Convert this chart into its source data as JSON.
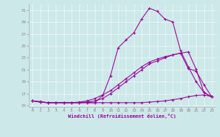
{
  "background_color": "#cce8e8",
  "line_color": "#990099",
  "xlim": [
    -0.5,
    23.5
  ],
  "ylim": [
    14.8,
    32.0
  ],
  "yticks": [
    15,
    17,
    19,
    21,
    23,
    25,
    27,
    29,
    31
  ],
  "xticks": [
    0,
    1,
    2,
    3,
    4,
    5,
    6,
    7,
    8,
    9,
    10,
    11,
    12,
    13,
    14,
    15,
    16,
    17,
    18,
    19,
    20,
    21,
    22,
    23
  ],
  "xlabel": "Windchill (Refroidissement éolien,°C)",
  "curve1_x": [
    0,
    1,
    2,
    3,
    4,
    5,
    6,
    7,
    8,
    9,
    10,
    11,
    12,
    13,
    14,
    15,
    16,
    17,
    18,
    19,
    20,
    21,
    22,
    23
  ],
  "curve1_y": [
    15.8,
    15.7,
    15.5,
    15.5,
    15.5,
    15.5,
    15.5,
    15.5,
    15.5,
    16.7,
    20.0,
    24.7,
    26.0,
    27.2,
    29.5,
    31.3,
    30.8,
    29.5,
    29.0,
    24.2,
    21.5,
    19.0,
    17.2,
    16.5
  ],
  "curve2_x": [
    0,
    1,
    2,
    3,
    4,
    5,
    6,
    7,
    8,
    9,
    10,
    11,
    12,
    13,
    14,
    15,
    16,
    17,
    18,
    19,
    20,
    21,
    22,
    23
  ],
  "curve2_y": [
    15.8,
    15.6,
    15.5,
    15.5,
    15.5,
    15.5,
    15.5,
    15.5,
    15.5,
    15.5,
    15.5,
    15.5,
    15.5,
    15.5,
    15.5,
    15.6,
    15.7,
    15.8,
    16.0,
    16.2,
    16.5,
    16.7,
    16.8,
    16.5
  ],
  "curve3_x": [
    0,
    1,
    2,
    3,
    4,
    5,
    6,
    7,
    8,
    9,
    10,
    11,
    12,
    13,
    14,
    15,
    16,
    17,
    18,
    19,
    20,
    21,
    22,
    23
  ],
  "curve3_y": [
    15.8,
    15.6,
    15.5,
    15.5,
    15.5,
    15.5,
    15.6,
    15.8,
    16.2,
    16.8,
    17.5,
    18.5,
    19.5,
    20.5,
    21.5,
    22.3,
    22.8,
    23.2,
    23.5,
    23.8,
    24.0,
    21.1,
    17.2,
    16.5
  ],
  "curve4_x": [
    0,
    1,
    2,
    3,
    4,
    5,
    6,
    7,
    8,
    9,
    10,
    11,
    12,
    13,
    14,
    15,
    16,
    17,
    18,
    19,
    20,
    21,
    22,
    23
  ],
  "curve4_y": [
    15.8,
    15.6,
    15.5,
    15.5,
    15.5,
    15.5,
    15.5,
    15.6,
    15.8,
    16.2,
    17.0,
    18.0,
    19.0,
    20.0,
    21.0,
    22.0,
    22.5,
    23.0,
    23.5,
    23.8,
    21.2,
    20.8,
    18.5,
    16.5
  ]
}
